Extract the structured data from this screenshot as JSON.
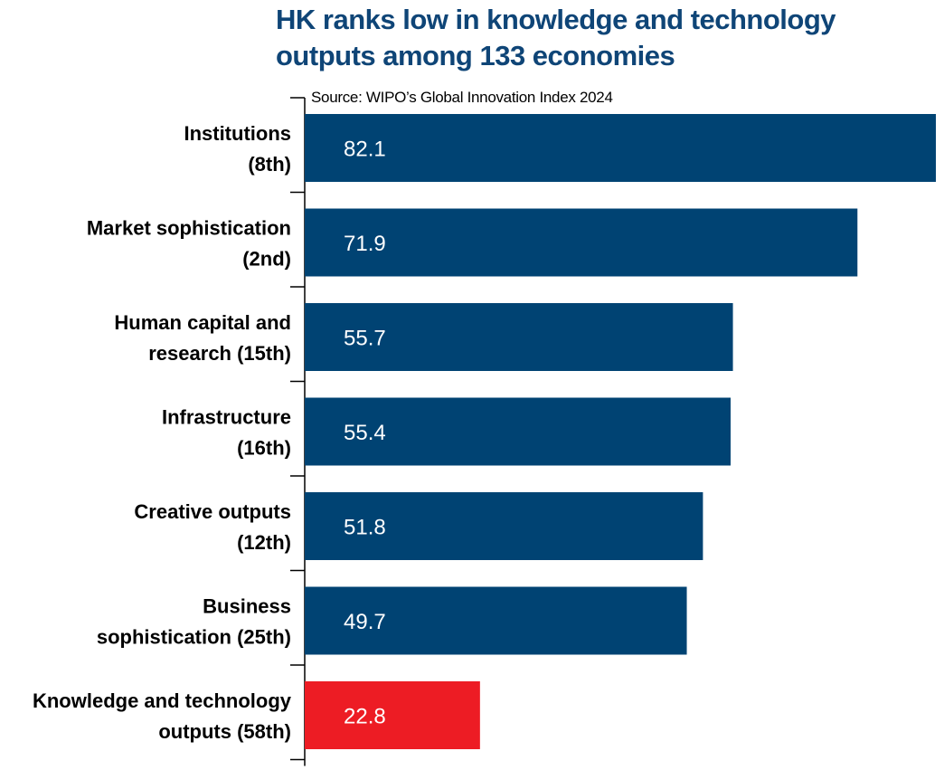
{
  "chart_data": {
    "type": "bar",
    "orientation": "horizontal",
    "title": [
      "HK ranks low in knowledge and technology",
      "outputs among 133 economies"
    ],
    "source": "Source: WIPO’s Global Innovation Index 2024",
    "xlabel": "",
    "ylabel": "",
    "xlim": [
      0,
      82.1
    ],
    "grid": false,
    "categories": [
      [
        "Institutions",
        "(8th)"
      ],
      [
        "Market sophistication",
        "(2nd)"
      ],
      [
        "Human capital and",
        "research (15th)"
      ],
      [
        "Infrastructure",
        "(16th)"
      ],
      [
        "Creative outputs",
        "(12th)"
      ],
      [
        "Business",
        "sophistication (25th)"
      ],
      [
        "Knowledge and technology",
        "outputs (58th)"
      ]
    ],
    "values": [
      82.1,
      71.9,
      55.7,
      55.4,
      51.8,
      49.7,
      22.8
    ],
    "value_labels": [
      "82.1",
      "71.9",
      "55.7",
      "55.4",
      "51.8",
      "49.7",
      "22.8"
    ],
    "colors": [
      "#004373",
      "#004373",
      "#004373",
      "#004373",
      "#004373",
      "#004373",
      "#ed1c24"
    ]
  }
}
